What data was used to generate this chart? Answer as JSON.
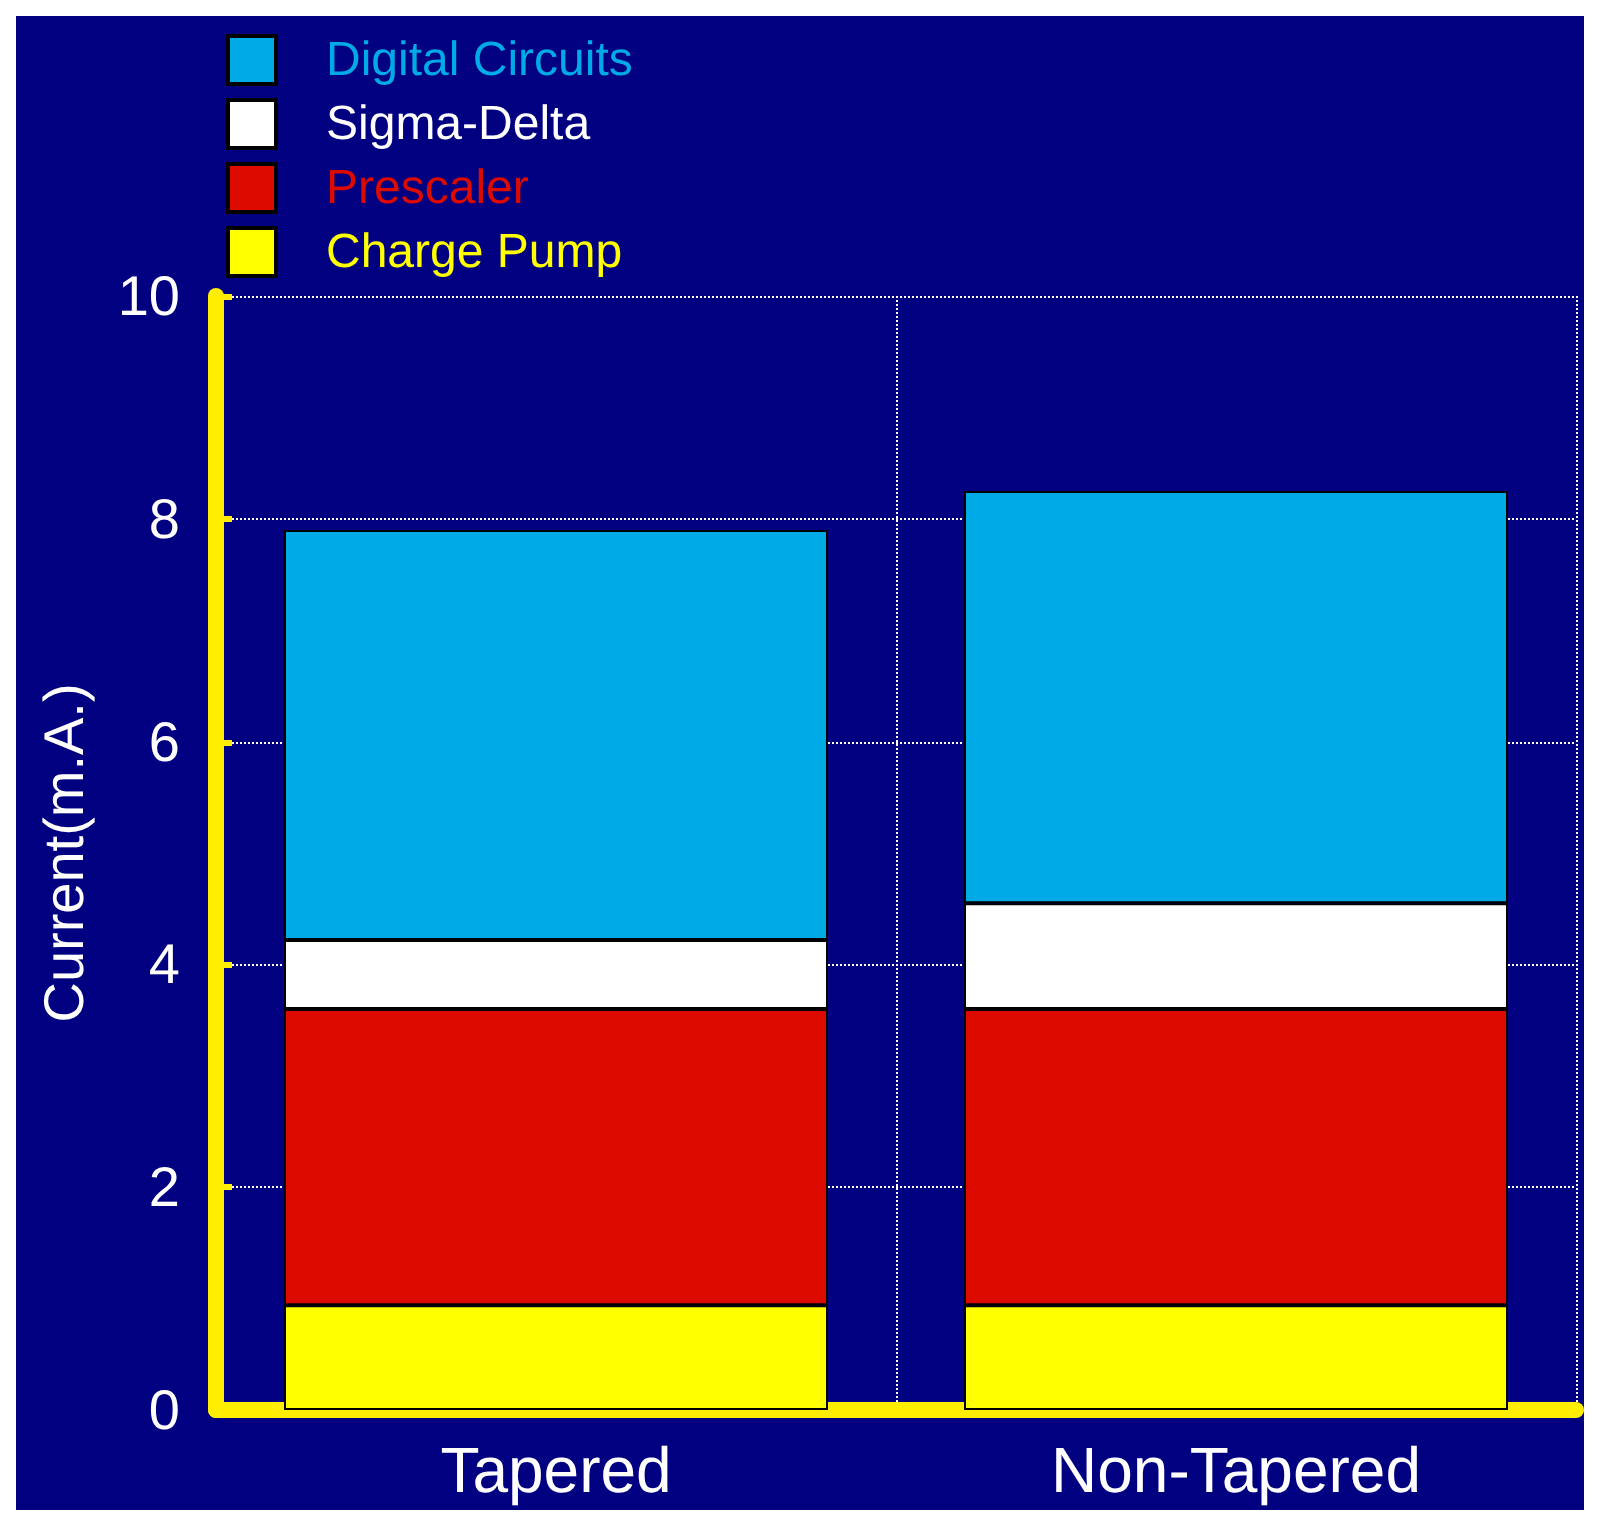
{
  "chart_data": {
    "type": "bar",
    "stacked": true,
    "ylabel": "Current(m.A.)",
    "categories": [
      "Tapered",
      "Non-Tapered"
    ],
    "series": [
      {
        "name": "Charge Pump",
        "color": "#ffff00",
        "values": [
          0.94,
          0.94
        ]
      },
      {
        "name": "Prescaler",
        "color": "#dd0a00",
        "values": [
          2.66,
          2.66
        ]
      },
      {
        "name": "Sigma-Delta",
        "color": "#ffffff",
        "values": [
          0.62,
          0.95
        ]
      },
      {
        "name": "Digital Circuits",
        "color": "#00aae6",
        "values": [
          3.68,
          3.7
        ]
      }
    ],
    "ylim": [
      0,
      10
    ],
    "yticks": [
      0,
      2,
      4,
      6,
      8,
      10
    ],
    "grid": true,
    "legend": "top left"
  }
}
